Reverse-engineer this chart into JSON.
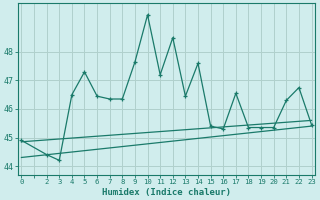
{
  "xlabel": "Humidex (Indice chaleur)",
  "x": [
    0,
    2,
    3,
    4,
    5,
    6,
    7,
    8,
    9,
    10,
    11,
    12,
    13,
    14,
    15,
    16,
    17,
    18,
    19,
    20,
    21,
    22,
    23
  ],
  "y_main": [
    44.9,
    44.4,
    44.2,
    46.5,
    47.3,
    46.45,
    46.35,
    46.35,
    47.65,
    49.3,
    47.2,
    48.5,
    46.45,
    47.6,
    45.4,
    45.3,
    46.55,
    45.35,
    45.35,
    45.35,
    46.3,
    46.75,
    45.45
  ],
  "line_color": "#1a7a6a",
  "bg_color": "#d0eded",
  "grid_color": "#b0d0cc",
  "ylim": [
    43.7,
    49.7
  ],
  "yticks": [
    44,
    45,
    46,
    47,
    48
  ],
  "xticks_all": [
    0,
    1,
    2,
    3,
    4,
    5,
    6,
    7,
    8,
    9,
    10,
    11,
    12,
    13,
    14,
    15,
    16,
    17,
    18,
    19,
    20,
    21,
    22,
    23
  ],
  "xtick_labels": [
    "0",
    "",
    "2",
    "3",
    "4",
    "5",
    "6",
    "7",
    "8",
    "9",
    "10",
    "11",
    "12",
    "13",
    "14",
    "15",
    "16",
    "17",
    "18",
    "19",
    "20",
    "21",
    "22",
    "23"
  ],
  "trend1": [
    44.85,
    45.6
  ],
  "trend2": [
    44.3,
    45.4
  ]
}
